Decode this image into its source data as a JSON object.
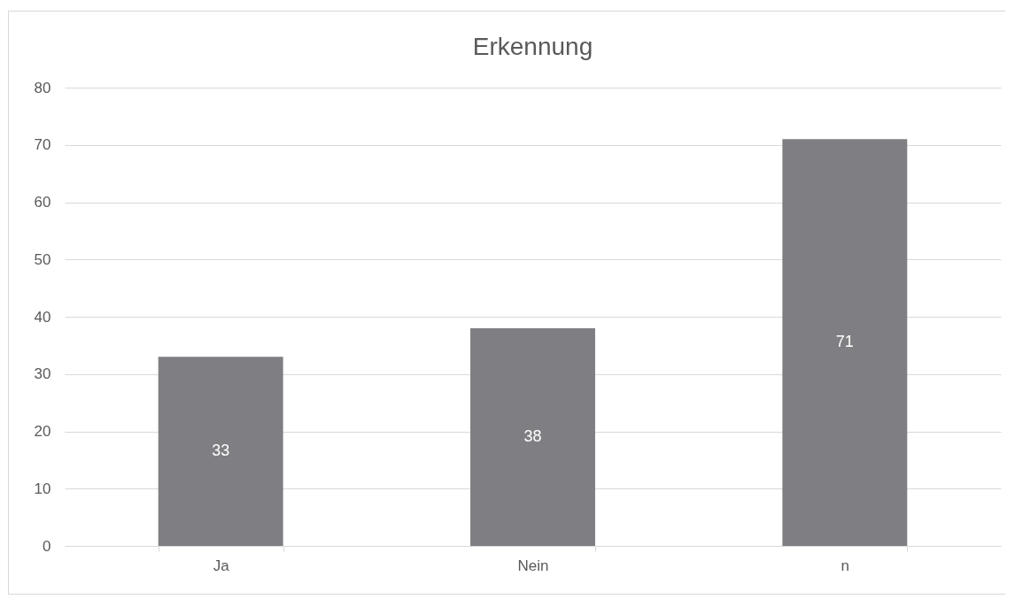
{
  "chart_data": {
    "type": "bar",
    "title": "Erkennung",
    "categories": [
      "Ja",
      "Nein",
      "n"
    ],
    "values": [
      33,
      38,
      71
    ],
    "color": "#7f7f83",
    "ylim": [
      0,
      80
    ],
    "yticks": [
      0,
      10,
      20,
      30,
      40,
      50,
      60,
      70,
      80
    ],
    "grid": "y",
    "data_labels": true
  }
}
